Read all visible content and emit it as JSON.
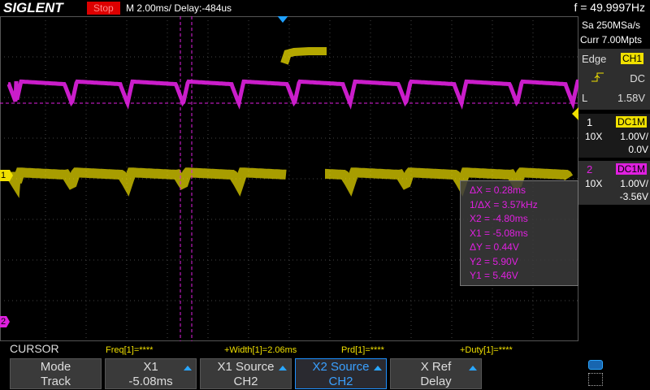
{
  "header": {
    "logo": "SIGLENT",
    "status": "Stop",
    "timebase": "M 2.00ms/ Delay:-484us",
    "frequency": "f = 49.9997Hz"
  },
  "acquisition": {
    "sample_rate": "Sa 250MSa/s",
    "memory": "Curr 7.00Mpts"
  },
  "trigger": {
    "type": "Edge",
    "source": "CH1",
    "coupling": "DC",
    "level_label": "L",
    "level": "1.58V"
  },
  "channels": [
    {
      "number": "1",
      "coupling": "DC1M",
      "probe": "10X",
      "scale": "1.00V/",
      "offset": "0.0V"
    },
    {
      "number": "2",
      "coupling": "DC1M",
      "probe": "10X",
      "scale": "1.00V/",
      "offset": "-3.56V"
    }
  ],
  "cursor_readout": [
    "ΔX = 0.28ms",
    "1/ΔX = 3.57kHz",
    "X2 = -4.80ms",
    "X1 = -5.08ms",
    "ΔY = 0.44V",
    "Y2 = 5.90V",
    "Y1 = 5.46V"
  ],
  "measurements": {
    "title": "CURSOR",
    "items": [
      "Freq[1]=****",
      "+Width[1]=2.06ms",
      "Prd[1]=****",
      "+Duty[1]=****"
    ]
  },
  "softkeys": [
    {
      "label": "Mode",
      "value": "Track"
    },
    {
      "label": "X1",
      "value": "-5.08ms"
    },
    {
      "label": "X1 Source",
      "value": "CH2"
    },
    {
      "label": "X2 Source",
      "value": "CH2"
    },
    {
      "label": "X Ref",
      "value": "Delay"
    }
  ]
}
